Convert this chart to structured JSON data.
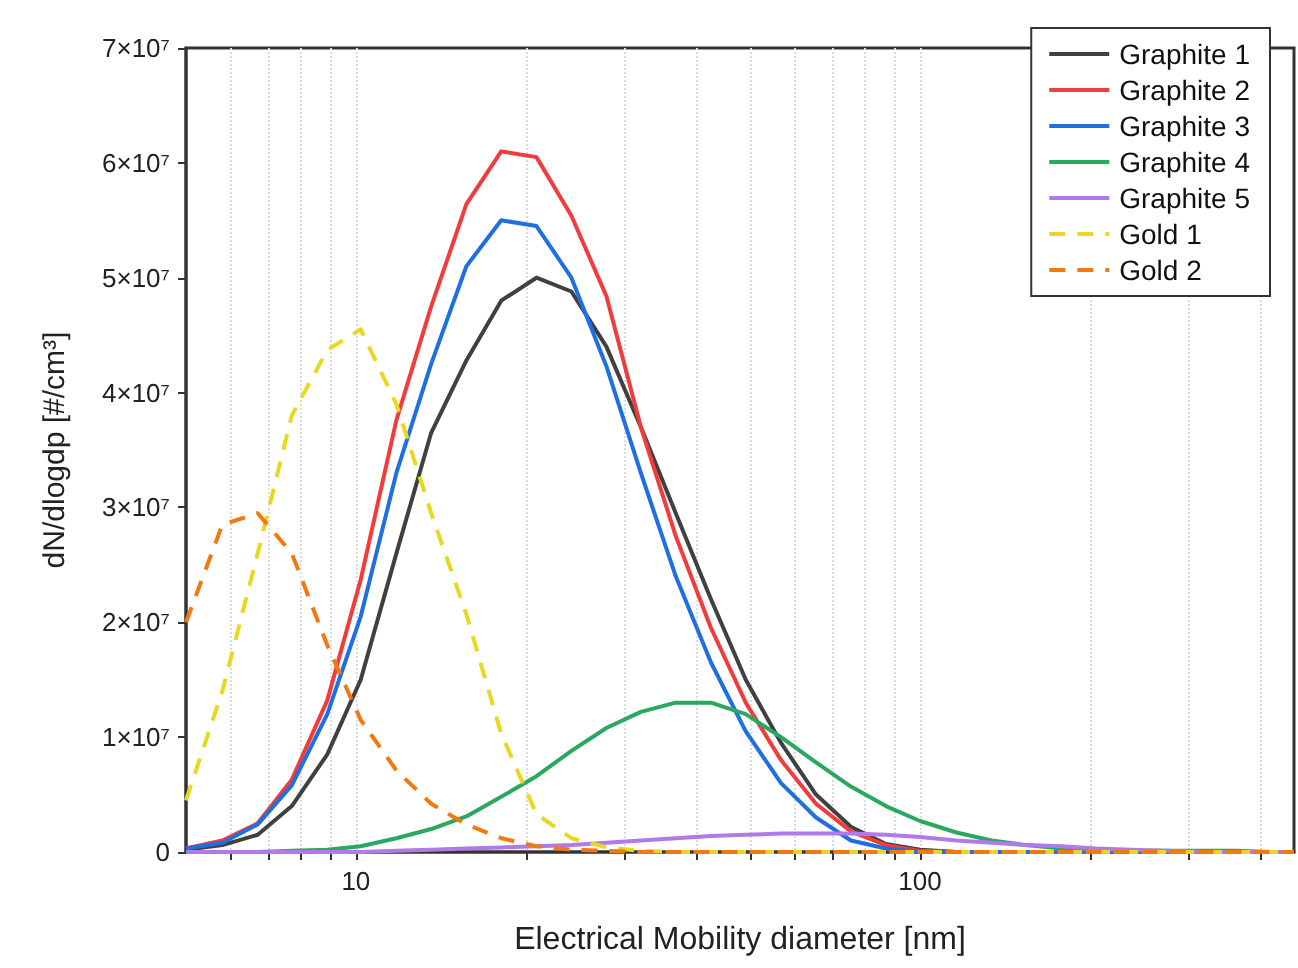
{
  "chart_data": {
    "type": "line",
    "xlabel": "Electrical Mobility diameter [nm]",
    "ylabel": "dN/dlogdp [#/cm³]",
    "log": "x",
    "grid": "x",
    "legend": "top right",
    "marker": "none",
    "xlim": [
      5,
      460
    ],
    "xticks": [
      {
        "value": 6,
        "label": null
      },
      {
        "value": 7,
        "label": null
      },
      {
        "value": 8,
        "label": null
      },
      {
        "value": 9,
        "label": null
      },
      10,
      {
        "value": 20,
        "label": null
      },
      {
        "value": 30,
        "label": null
      },
      {
        "value": 40,
        "label": null
      },
      {
        "value": 50,
        "label": null
      },
      {
        "value": 60,
        "label": null
      },
      {
        "value": 70,
        "label": null
      },
      {
        "value": 80,
        "label": null
      },
      {
        "value": 90,
        "label": null
      },
      100,
      {
        "value": 200,
        "label": null
      },
      {
        "value": 300,
        "label": null
      },
      {
        "value": 400,
        "label": null
      }
    ],
    "ylim": [
      0,
      70000000.0
    ],
    "yticks": [
      0,
      {
        "value": 10000000.0,
        "label": "1×10⁷"
      },
      {
        "value": 20000000.0,
        "label": "2×10⁷"
      },
      {
        "value": 30000000.0,
        "label": "3×10⁷"
      },
      {
        "value": 40000000.0,
        "label": "4×10⁷"
      },
      {
        "value": 50000000.0,
        "label": "5×10⁷"
      },
      {
        "value": 60000000.0,
        "label": "6×10⁷"
      },
      {
        "value": 70000000.0,
        "label": "7×10⁷"
      }
    ],
    "x": [
      5,
      5.8,
      6.7,
      7.7,
      8.9,
      10.2,
      11.8,
      13.6,
      15.7,
      18.1,
      20.9,
      24.1,
      27.8,
      32,
      36.9,
      42.6,
      49.1,
      56.7,
      65.4,
      75.4,
      87,
      100,
      116,
      134,
      154,
      178,
      205,
      237,
      273,
      315,
      363,
      420,
      460
    ],
    "series": [
      {
        "name": "Graphite 1",
        "color": "#404040",
        "line_style": "solid",
        "values": [
          200000.0,
          600000.0,
          1500000.0,
          4000000.0,
          8500000.0,
          15000000.0,
          26000000.0,
          36500000.0,
          42800000.0,
          48000000.0,
          50000000.0,
          48800000.0,
          44000000.0,
          37000000.0,
          29500000.0,
          22000000.0,
          15000000.0,
          9500000.0,
          5000000.0,
          2200000.0,
          700000.0,
          200000.0,
          0,
          0,
          0,
          0,
          0,
          0,
          0,
          0,
          0,
          0,
          0
        ]
      },
      {
        "name": "Graphite 2",
        "color": "#f03c3c",
        "line_style": "solid",
        "values": [
          300000.0,
          1000000.0,
          2500000.0,
          6300000.0,
          13200000.0,
          23700000.0,
          37600000.0,
          47500000.0,
          56400000.0,
          61000000.0,
          60500000.0,
          55400000.0,
          48400000.0,
          37000000.0,
          27500000.0,
          19500000.0,
          13000000.0,
          8000000.0,
          4200000.0,
          1800000.0,
          600000.0,
          100000.0,
          0,
          0,
          null,
          null,
          null,
          null,
          null,
          null,
          null,
          null,
          null
        ]
      },
      {
        "name": "Graphite 3",
        "color": "#1f6fe0",
        "line_style": "solid",
        "values": [
          300000.0,
          800000.0,
          2400000.0,
          5800000.0,
          12000000.0,
          20500000.0,
          33000000.0,
          42500000.0,
          51000000.0,
          55000000.0,
          54500000.0,
          50000000.0,
          42300000.0,
          33000000.0,
          24000000.0,
          16500000.0,
          10500000.0,
          6000000.0,
          3000000.0,
          1000000.0,
          300000.0,
          0,
          0,
          0,
          0,
          0,
          0,
          0,
          0,
          0,
          null,
          null,
          null
        ]
      },
      {
        "name": "Graphite 4",
        "color": "#2aa860",
        "line_style": "solid",
        "values": [
          0,
          0,
          0,
          100000.0,
          200000.0,
          500000.0,
          1200000.0,
          2000000.0,
          3100000.0,
          4800000.0,
          6600000.0,
          8800000.0,
          10800000.0,
          12200000.0,
          13000000.0,
          13000000.0,
          12000000.0,
          10000000.0,
          7800000.0,
          5700000.0,
          4000000.0,
          2700000.0,
          1700000.0,
          1000000.0,
          600000.0,
          300000.0,
          200000.0,
          100000.0,
          100000.0,
          100000.0,
          100000.0,
          0,
          0
        ]
      },
      {
        "name": "Graphite 5",
        "color": "#b07ae8",
        "line_style": "solid",
        "values": [
          0,
          0,
          0,
          0,
          0,
          0,
          100000.0,
          200000.0,
          300000.0,
          400000.0,
          500000.0,
          600000.0,
          800000.0,
          1000000.0,
          1200000.0,
          1400000.0,
          1500000.0,
          1600000.0,
          1600000.0,
          1600000.0,
          1500000.0,
          1300000.0,
          1000000.0,
          800000.0,
          600000.0,
          500000.0,
          300000.0,
          200000.0,
          100000.0,
          0,
          0,
          0,
          0
        ]
      },
      {
        "name": "Gold 1",
        "color": "#e8d820",
        "line_style": "dashed",
        "values": [
          4500000.0,
          14000000.0,
          26000000.0,
          38000000.0,
          43700000.0,
          45500000.0,
          39000000.0,
          29500000.0,
          20700000.0,
          10300000.0,
          3300000.0,
          1200000.0,
          400000.0,
          100000.0,
          0,
          0,
          0,
          0,
          0,
          0,
          0,
          0,
          0,
          0,
          0,
          0,
          0,
          0,
          0,
          0,
          0,
          0,
          0
        ]
      },
      {
        "name": "Gold 2",
        "color": "#f07a10",
        "line_style": "dashed",
        "values": [
          20000000.0,
          28500000.0,
          29500000.0,
          26000000.0,
          18000000.0,
          11500000.0,
          7100000.0,
          4200000.0,
          2400000.0,
          1200000.0,
          500000.0,
          200000.0,
          100000.0,
          0,
          0,
          0,
          0,
          0,
          0,
          0,
          0,
          0,
          0,
          0,
          0,
          0,
          0,
          0,
          0,
          0,
          0,
          0,
          0
        ]
      }
    ]
  }
}
